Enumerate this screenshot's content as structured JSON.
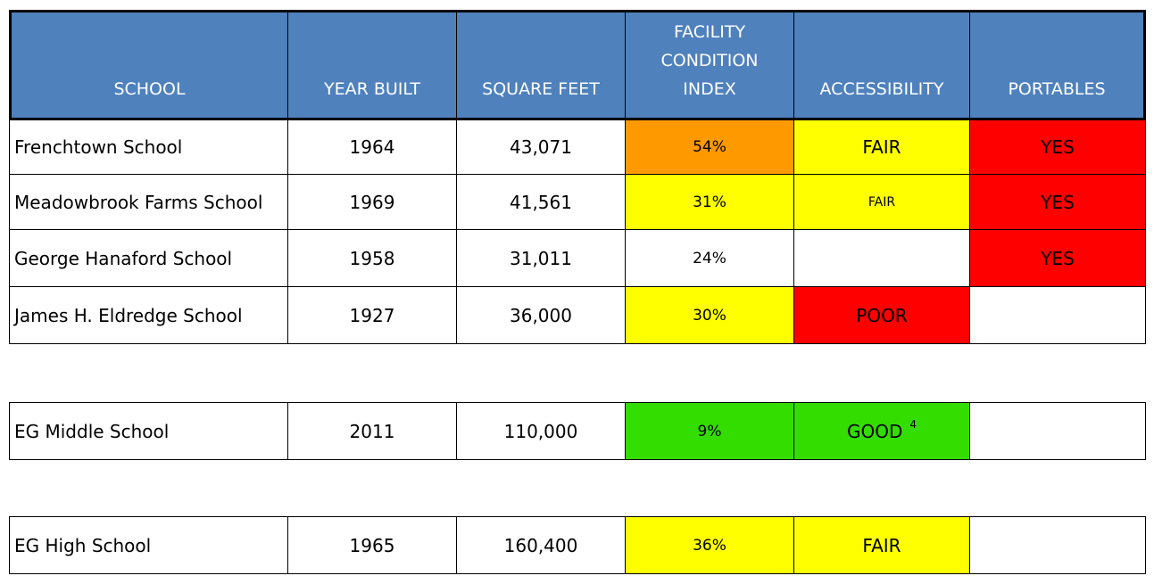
{
  "colors": {
    "header": "#4f81bd",
    "orange": "#ff9900",
    "yellow": "#ffff00",
    "red": "#ff0000",
    "green": "#33dd00",
    "white": "#ffffff"
  },
  "headers": [
    "SCHOOL",
    "YEAR BUILT",
    "SQUARE FEET",
    "FACILITY CONDITION INDEX",
    "ACCESSIBILITY",
    "PORTABLES"
  ],
  "groups": [
    [
      {
        "school": "Frenchtown School",
        "year": "1964",
        "sqft": "43,071",
        "fci": "54%",
        "fci_color": "orange",
        "access": "FAIR",
        "access_color": "yellow",
        "portables": "YES",
        "portables_color": "red"
      },
      {
        "school": "Meadowbrook Farms School",
        "year": "1969",
        "sqft": "41,561",
        "fci": "31%",
        "fci_color": "yellow",
        "access": "FAIR",
        "access_small": true,
        "access_color": "yellow",
        "portables": "YES",
        "portables_color": "red"
      },
      {
        "school": "George Hanaford School",
        "year": "1958",
        "sqft": "31,011",
        "fci": "24%",
        "fci_color": "white",
        "access": "",
        "access_color": "white",
        "portables": "YES",
        "portables_color": "red"
      },
      {
        "school": "James H. Eldredge School",
        "year": "1927",
        "sqft": "36,000",
        "fci": "30%",
        "fci_color": "yellow",
        "access": "POOR",
        "access_color": "red",
        "portables": "",
        "portables_color": "white"
      }
    ],
    [
      {
        "school": "EG Middle School",
        "year": "2011",
        "sqft": "110,000",
        "fci": "9%",
        "fci_color": "green",
        "access": "GOOD",
        "access_note": "4",
        "access_color": "green",
        "portables": "",
        "portables_color": "white"
      }
    ],
    [
      {
        "school": "EG High School",
        "year": "1965",
        "sqft": "160,400",
        "fci": "36%",
        "fci_color": "yellow",
        "access": "FAIR",
        "access_color": "yellow",
        "portables": "",
        "portables_color": "white"
      }
    ]
  ]
}
